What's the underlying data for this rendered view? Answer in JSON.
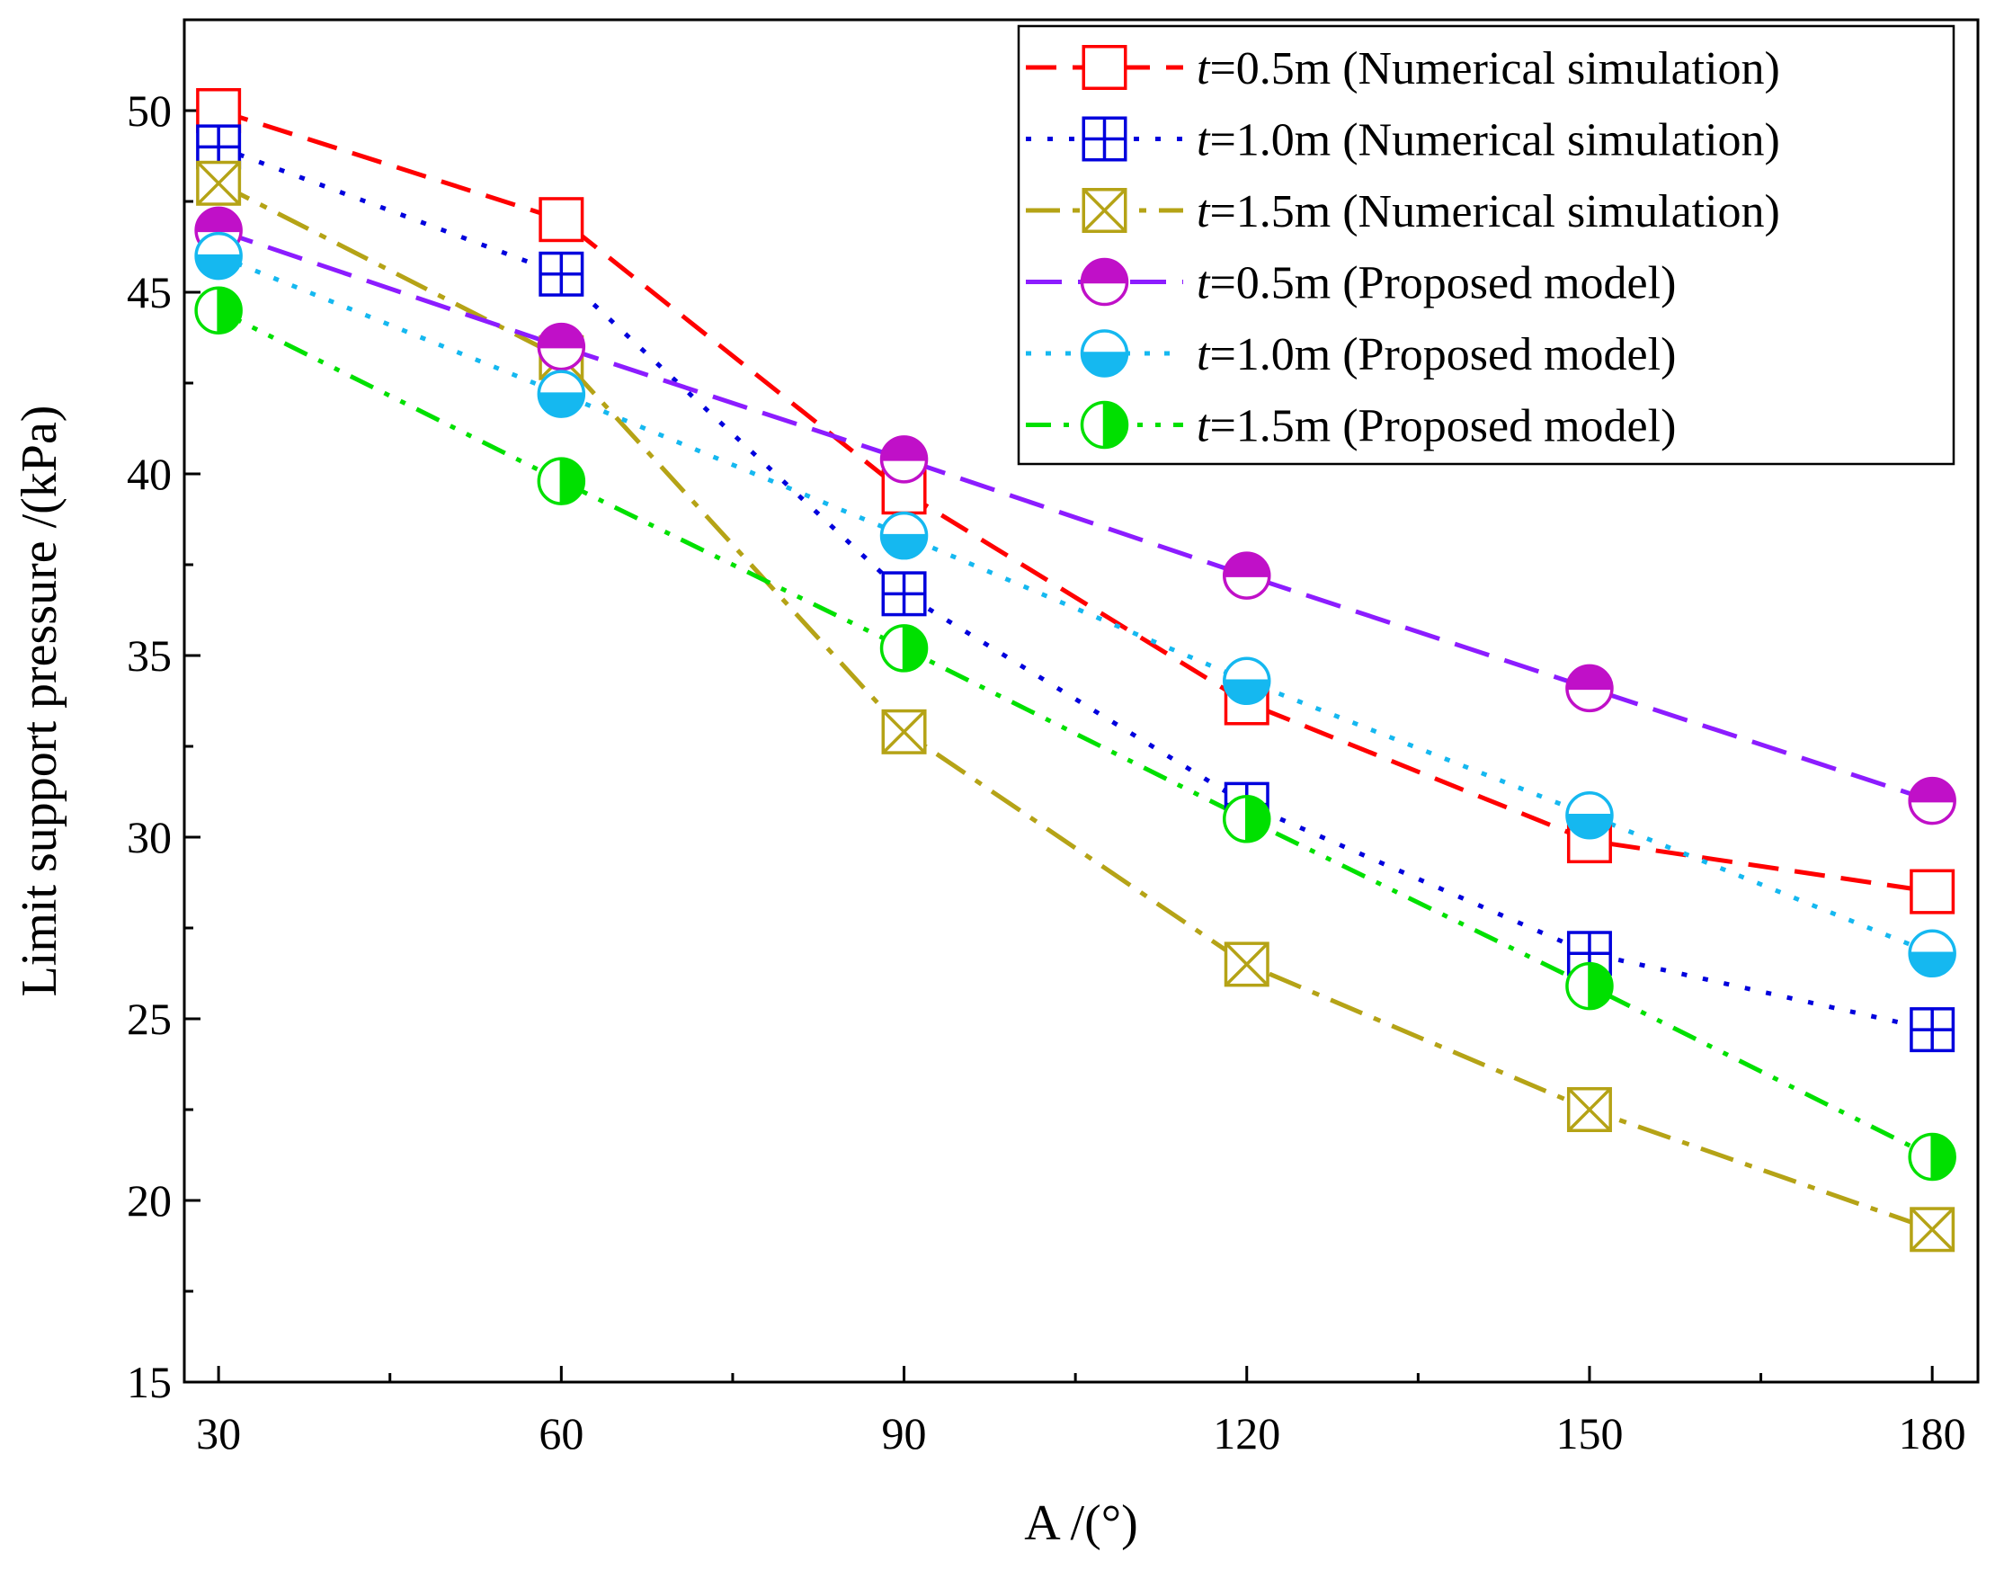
{
  "chart_data": {
    "type": "line",
    "xlabel": "A /(°)",
    "ylabel": "Limit support pressure /(kPa)",
    "xlim": [
      27,
      184
    ],
    "ylim": [
      15,
      52.5
    ],
    "x_ticks": [
      30,
      60,
      90,
      120,
      150,
      180
    ],
    "x_tick_labels": [
      "30",
      "60",
      "90",
      "120",
      "150",
      "180"
    ],
    "y_ticks": [
      15,
      20,
      25,
      30,
      35,
      40,
      45,
      50
    ],
    "y_tick_labels": [
      "15",
      "20",
      "25",
      "30",
      "35",
      "40",
      "45",
      "50"
    ],
    "legend_position": "top-right",
    "series": [
      {
        "name": "t=0.5m (Numerical simulation)",
        "legend_var": "t",
        "legend_rest": "=0.5m (Numerical simulation)",
        "color": "#ff0000",
        "marker": "square",
        "dash": "34,18",
        "x": [
          30,
          60,
          90,
          120,
          150,
          180
        ],
        "values": [
          50.0,
          47.0,
          39.5,
          33.7,
          29.9,
          28.5
        ]
      },
      {
        "name": "t=1.0m (Numerical simulation)",
        "legend_var": "t",
        "legend_rest": "=1.0m (Numerical simulation)",
        "color": "#0000dd",
        "marker": "square-plus",
        "dash": "6,18",
        "x": [
          30,
          60,
          90,
          120,
          150,
          180
        ],
        "values": [
          49.0,
          45.5,
          36.7,
          30.9,
          26.8,
          24.7
        ]
      },
      {
        "name": "t=1.5m (Numerical simulation)",
        "legend_var": "t",
        "legend_rest": "=1.5m (Numerical simulation)",
        "color": "#b5a316",
        "marker": "square-x",
        "dash": "38,14,8,14",
        "x": [
          30,
          60,
          90,
          120,
          150,
          180
        ],
        "values": [
          48.0,
          43.2,
          32.9,
          26.5,
          22.5,
          19.2
        ]
      },
      {
        "name": "t=0.5m (Proposed model)",
        "legend_var": "t",
        "legend_rest": "=0.5m (Proposed model)",
        "color": "#8c1cff",
        "marker_color": "#c010c8",
        "marker": "circle-half-top",
        "dash": "40,18",
        "x": [
          30,
          60,
          90,
          120,
          150,
          180
        ],
        "values": [
          46.7,
          43.5,
          40.4,
          37.2,
          34.1,
          31.0
        ]
      },
      {
        "name": "t=1.0m (Proposed model)",
        "legend_var": "t",
        "legend_rest": "=1.0m (Proposed model)",
        "color": "#15b8f0",
        "marker": "circle-half-bottom",
        "dash": "6,16",
        "x": [
          30,
          60,
          90,
          120,
          150,
          180
        ],
        "values": [
          46.0,
          42.2,
          38.3,
          34.3,
          30.6,
          26.8
        ]
      },
      {
        "name": "t=1.5m (Proposed model)",
        "legend_var": "t",
        "legend_rest": "=1.5m (Proposed model)",
        "color": "#00e000",
        "marker": "circle-half-right",
        "dash": "28,14,6,14,6,14",
        "x": [
          30,
          60,
          90,
          120,
          150,
          180
        ],
        "values": [
          44.5,
          39.8,
          35.2,
          30.5,
          25.9,
          21.2
        ]
      }
    ]
  }
}
